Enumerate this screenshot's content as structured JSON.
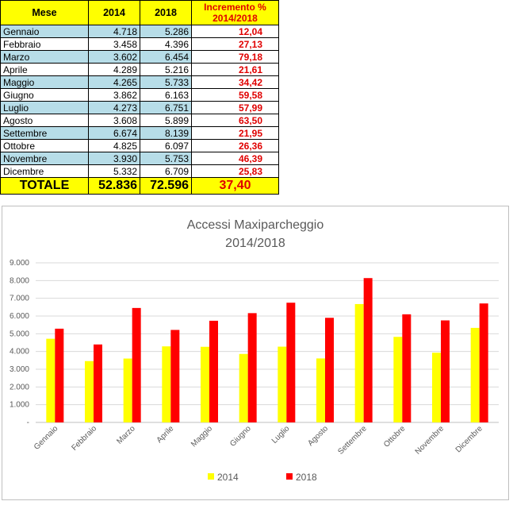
{
  "table": {
    "headers": {
      "month": "Mese",
      "y2014": "2014",
      "y2018": "2018",
      "inc_line1": "Incremento %",
      "inc_line2": "2014/2018"
    },
    "rows": [
      {
        "month": "Gennaio",
        "v2014": "4.718",
        "v2018": "5.286",
        "inc": "12,04"
      },
      {
        "month": "Febbraio",
        "v2014": "3.458",
        "v2018": "4.396",
        "inc": "27,13"
      },
      {
        "month": "Marzo",
        "v2014": "3.602",
        "v2018": "6.454",
        "inc": "79,18"
      },
      {
        "month": "Aprile",
        "v2014": "4.289",
        "v2018": "5.216",
        "inc": "21,61"
      },
      {
        "month": "Maggio",
        "v2014": "4.265",
        "v2018": "5.733",
        "inc": "34,42"
      },
      {
        "month": "Giugno",
        "v2014": "3.862",
        "v2018": "6.163",
        "inc": "59,58"
      },
      {
        "month": "Luglio",
        "v2014": "4.273",
        "v2018": "6.751",
        "inc": "57,99"
      },
      {
        "month": "Agosto",
        "v2014": "3.608",
        "v2018": "5.899",
        "inc": "63,50"
      },
      {
        "month": "Settembre",
        "v2014": "6.674",
        "v2018": "8.139",
        "inc": "21,95"
      },
      {
        "month": "Ottobre",
        "v2014": "4.825",
        "v2018": "6.097",
        "inc": "26,36"
      },
      {
        "month": "Novembre",
        "v2014": "3.930",
        "v2018": "5.753",
        "inc": "46,39"
      },
      {
        "month": "Dicembre",
        "v2014": "5.332",
        "v2018": "6.709",
        "inc": "25,83"
      }
    ],
    "total": {
      "label": "TOTALE",
      "v2014": "52.836",
      "v2018": "72.596",
      "inc": "37,40"
    }
  },
  "colors": {
    "header_bg": "#ffff00",
    "row_blue": "#b7dde8",
    "increment_text": "#e00000",
    "series_2014": "#ffff00",
    "series_2018": "#ff0000"
  },
  "chart_data": {
    "type": "bar",
    "title_line1": "Accessi Maxiparcheggio",
    "title_line2": "2014/2018",
    "categories": [
      "Gennaio",
      "Febbraio",
      "Marzo",
      "Aprile",
      "Maggio",
      "Giugno",
      "Luglio",
      "Agosto",
      "Settembre",
      "Ottobre",
      "Novembre",
      "Dicembre"
    ],
    "series": [
      {
        "name": "2014",
        "color": "#ffff00",
        "values": [
          4718,
          3458,
          3602,
          4289,
          4265,
          3862,
          4273,
          3608,
          6674,
          4825,
          3930,
          5332
        ]
      },
      {
        "name": "2018",
        "color": "#ff0000",
        "values": [
          5286,
          4396,
          6454,
          5216,
          5733,
          6163,
          6751,
          5899,
          8139,
          6097,
          5753,
          6709
        ]
      }
    ],
    "ylim": [
      0,
      9000
    ],
    "yticks": [
      0,
      1000,
      2000,
      3000,
      4000,
      5000,
      6000,
      7000,
      8000,
      9000
    ],
    "ytick_labels": [
      "-",
      "1.000",
      "2.000",
      "3.000",
      "4.000",
      "5.000",
      "6.000",
      "7.000",
      "8.000",
      "9.000"
    ],
    "grid": true,
    "legend_position": "bottom"
  }
}
